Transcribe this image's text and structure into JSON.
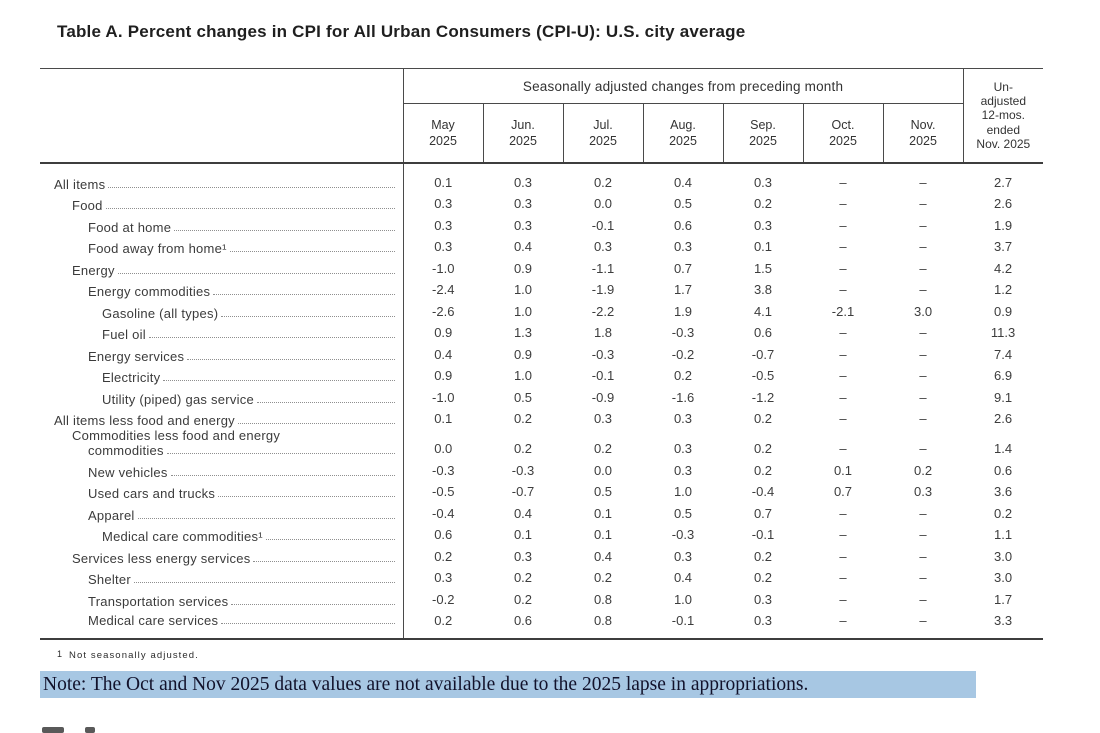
{
  "page": {
    "title": "Table A. Percent changes in CPI for All Urban Consumers (CPI-U): U.S. city average",
    "footnote_marker": "1",
    "footnote_text": "Not seasonally adjusted.",
    "note": "Note: The Oct and Nov 2025 data values are not available due to the 2025 lapse in appropriations.",
    "note_highlight_color": "#a7c7e3",
    "note_text_color": "#12122b"
  },
  "table": {
    "banner": "Seasonally adjusted changes from preceding month",
    "unadjusted_header": "Un-\nadjusted\n12-mos.\nended\nNov. 2025",
    "months": [
      "May\n2025",
      "Jun.\n2025",
      "Jul.\n2025",
      "Aug.\n2025",
      "Sep.\n2025",
      "Oct.\n2025",
      "Nov.\n2025"
    ],
    "rows": [
      {
        "label": "All items",
        "indent": 0,
        "values": [
          "0.1",
          "0.3",
          "0.2",
          "0.4",
          "0.3",
          "–",
          "–",
          "2.7"
        ]
      },
      {
        "label": "Food",
        "indent": 1,
        "values": [
          "0.3",
          "0.3",
          "0.0",
          "0.5",
          "0.2",
          "–",
          "–",
          "2.6"
        ]
      },
      {
        "label": "Food at home",
        "indent": 2,
        "values": [
          "0.3",
          "0.3",
          "-0.1",
          "0.6",
          "0.3",
          "–",
          "–",
          "1.9"
        ]
      },
      {
        "label": "Food away from home¹",
        "indent": 2,
        "values": [
          "0.3",
          "0.4",
          "0.3",
          "0.3",
          "0.1",
          "–",
          "–",
          "3.7"
        ]
      },
      {
        "label": "Energy",
        "indent": 1,
        "values": [
          "-1.0",
          "0.9",
          "-1.1",
          "0.7",
          "1.5",
          "–",
          "–",
          "4.2"
        ]
      },
      {
        "label": "Energy commodities",
        "indent": 2,
        "values": [
          "-2.4",
          "1.0",
          "-1.9",
          "1.7",
          "3.8",
          "–",
          "–",
          "1.2"
        ]
      },
      {
        "label": "Gasoline (all types)",
        "indent": 3,
        "values": [
          "-2.6",
          "1.0",
          "-2.2",
          "1.9",
          "4.1",
          "-2.1",
          "3.0",
          "0.9"
        ]
      },
      {
        "label": "Fuel oil",
        "indent": 3,
        "values": [
          "0.9",
          "1.3",
          "1.8",
          "-0.3",
          "0.6",
          "–",
          "–",
          "11.3"
        ]
      },
      {
        "label": "Energy services",
        "indent": 2,
        "values": [
          "0.4",
          "0.9",
          "-0.3",
          "-0.2",
          "-0.7",
          "–",
          "–",
          "7.4"
        ]
      },
      {
        "label": "Electricity",
        "indent": 3,
        "values": [
          "0.9",
          "1.0",
          "-0.1",
          "0.2",
          "-0.5",
          "–",
          "–",
          "6.9"
        ]
      },
      {
        "label": "Utility (piped) gas service",
        "indent": 3,
        "values": [
          "-1.0",
          "0.5",
          "-0.9",
          "-1.6",
          "-1.2",
          "–",
          "–",
          "9.1"
        ]
      },
      {
        "label": "All items less food and energy",
        "indent": 0,
        "values": [
          "0.1",
          "0.2",
          "0.3",
          "0.3",
          "0.2",
          "–",
          "–",
          "2.6"
        ]
      },
      {
        "label": "Commodities less food and energy",
        "label2": "commodities",
        "indent": 1,
        "values": [
          "0.0",
          "0.2",
          "0.2",
          "0.3",
          "0.2",
          "–",
          "–",
          "1.4"
        ]
      },
      {
        "label": "New vehicles",
        "indent": 2,
        "values": [
          "-0.3",
          "-0.3",
          "0.0",
          "0.3",
          "0.2",
          "0.1",
          "0.2",
          "0.6"
        ]
      },
      {
        "label": "Used cars and trucks",
        "indent": 2,
        "values": [
          "-0.5",
          "-0.7",
          "0.5",
          "1.0",
          "-0.4",
          "0.7",
          "0.3",
          "3.6"
        ]
      },
      {
        "label": "Apparel",
        "indent": 2,
        "values": [
          "-0.4",
          "0.4",
          "0.1",
          "0.5",
          "0.7",
          "–",
          "–",
          "0.2"
        ]
      },
      {
        "label": "Medical care commodities¹",
        "indent": 3,
        "values": [
          "0.6",
          "0.1",
          "0.1",
          "-0.3",
          "-0.1",
          "–",
          "–",
          "1.1"
        ]
      },
      {
        "label": "Services less energy services",
        "indent": 1,
        "values": [
          "0.2",
          "0.3",
          "0.4",
          "0.3",
          "0.2",
          "–",
          "–",
          "3.0"
        ]
      },
      {
        "label": "Shelter",
        "indent": 2,
        "values": [
          "0.3",
          "0.2",
          "0.2",
          "0.4",
          "0.2",
          "–",
          "–",
          "3.0"
        ]
      },
      {
        "label": "Transportation services",
        "indent": 2,
        "values": [
          "-0.2",
          "0.2",
          "0.8",
          "1.0",
          "0.3",
          "–",
          "–",
          "1.7"
        ]
      },
      {
        "label": "Medical care services",
        "indent": 2,
        "values": [
          "0.2",
          "0.6",
          "0.8",
          "-0.1",
          "0.3",
          "–",
          "–",
          "3.3"
        ]
      }
    ]
  }
}
